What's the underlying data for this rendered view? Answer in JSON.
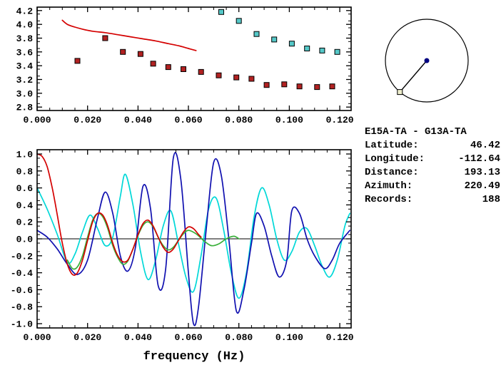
{
  "station_info": {
    "title": "E15A-TA - G13A-TA",
    "rows": [
      {
        "label": "Latitude:",
        "value": "46.42"
      },
      {
        "label": "Longitude:",
        "value": "-112.64"
      },
      {
        "label": "Distance:",
        "value": "193.13"
      },
      {
        "label": "Azimuth:",
        "value": "220.49"
      },
      {
        "label": "Records:",
        "value": "188"
      }
    ]
  },
  "azimuth_plot": {
    "azimuth_deg": 220.49,
    "circle_color": "#000000",
    "center_dot_color": "#000080",
    "endpoint_marker_color": "#eeeecc"
  },
  "chart_data": [
    {
      "type": "scatter",
      "title": "",
      "xlabel": "",
      "ylabel": "",
      "xlim": [
        0,
        0.1245
      ],
      "ylim": [
        2.75,
        4.25
      ],
      "xticks": [
        0,
        0.02,
        0.04,
        0.06,
        0.08,
        0.1,
        0.12
      ],
      "xtick_labels": [
        "0.000",
        "0.020",
        "0.040",
        "0.060",
        "0.080",
        "0.100",
        "0.120"
      ],
      "yticks": [
        2.8,
        3.0,
        3.2,
        3.4,
        3.6,
        3.8,
        4.0,
        4.2
      ],
      "ytick_labels": [
        "2.8",
        "3.0",
        "3.2",
        "3.4",
        "3.6",
        "3.8",
        "4.0",
        "4.2"
      ],
      "x_minor_step": 0.005,
      "y_minor_step": 0.1,
      "zero_line": false,
      "series": [
        {
          "name": "phase-velocity-curve",
          "marker": "line",
          "color": "#d40000",
          "points": [
            [
              0.01,
              4.06
            ],
            [
              0.012,
              4.0
            ],
            [
              0.015,
              3.96
            ],
            [
              0.018,
              3.93
            ],
            [
              0.022,
              3.9
            ],
            [
              0.027,
              3.88
            ],
            [
              0.032,
              3.85
            ],
            [
              0.037,
              3.82
            ],
            [
              0.042,
              3.79
            ],
            [
              0.047,
              3.76
            ],
            [
              0.052,
              3.72
            ],
            [
              0.056,
              3.69
            ],
            [
              0.06,
              3.65
            ],
            [
              0.063,
              3.62
            ]
          ]
        },
        {
          "name": "red-square-points",
          "marker": "square",
          "color": "#b22222",
          "points": [
            [
              0.016,
              3.47
            ],
            [
              0.027,
              3.8
            ],
            [
              0.034,
              3.6
            ],
            [
              0.041,
              3.57
            ],
            [
              0.046,
              3.43
            ],
            [
              0.052,
              3.38
            ],
            [
              0.058,
              3.35
            ],
            [
              0.065,
              3.31
            ],
            [
              0.072,
              3.26
            ],
            [
              0.079,
              3.23
            ],
            [
              0.085,
              3.21
            ],
            [
              0.091,
              3.12
            ],
            [
              0.098,
              3.13
            ],
            [
              0.104,
              3.1
            ],
            [
              0.111,
              3.09
            ],
            [
              0.117,
              3.1
            ]
          ]
        },
        {
          "name": "cyan-square-points",
          "marker": "square",
          "color": "#55c8c8",
          "points": [
            [
              0.073,
              4.18
            ],
            [
              0.08,
              4.05
            ],
            [
              0.087,
              3.86
            ],
            [
              0.094,
              3.78
            ],
            [
              0.101,
              3.72
            ],
            [
              0.107,
              3.65
            ],
            [
              0.113,
              3.62
            ],
            [
              0.119,
              3.6
            ]
          ]
        }
      ]
    },
    {
      "type": "line",
      "title": "",
      "xlabel": "frequency (Hz)",
      "ylabel": "",
      "xlim": [
        0,
        0.1245
      ],
      "ylim": [
        -1.05,
        1.05
      ],
      "xticks": [
        0,
        0.02,
        0.04,
        0.06,
        0.08,
        0.1,
        0.12
      ],
      "xtick_labels": [
        "0.000",
        "0.020",
        "0.040",
        "0.060",
        "0.080",
        "0.100",
        "0.120"
      ],
      "yticks": [
        -1.0,
        -0.8,
        -0.6,
        -0.4,
        -0.2,
        0.0,
        0.2,
        0.4,
        0.6,
        0.8,
        1.0
      ],
      "ytick_labels": [
        "-1.0",
        "-0.8",
        "-0.6",
        "-0.4",
        "-0.2",
        "0.0",
        "0.2",
        "0.4",
        "0.6",
        "0.8",
        "1.0"
      ],
      "x_minor_step": 0.005,
      "y_minor_step": 0.1,
      "zero_line": true,
      "series": [
        {
          "name": "cyan-waveform",
          "marker": "line",
          "color": "#00d8d8",
          "points": [
            [
              0.0,
              0.6
            ],
            [
              0.004,
              0.35
            ],
            [
              0.008,
              0.05
            ],
            [
              0.012,
              -0.28
            ],
            [
              0.015,
              -0.18
            ],
            [
              0.018,
              0.08
            ],
            [
              0.021,
              0.28
            ],
            [
              0.024,
              0.12
            ],
            [
              0.027,
              -0.08
            ],
            [
              0.03,
              0.02
            ],
            [
              0.033,
              0.5
            ],
            [
              0.035,
              0.76
            ],
            [
              0.038,
              0.4
            ],
            [
              0.041,
              -0.15
            ],
            [
              0.044,
              -0.48
            ],
            [
              0.047,
              -0.25
            ],
            [
              0.05,
              0.15
            ],
            [
              0.053,
              0.33
            ],
            [
              0.056,
              -0.05
            ],
            [
              0.059,
              -0.45
            ],
            [
              0.062,
              -0.62
            ],
            [
              0.065,
              -0.2
            ],
            [
              0.068,
              0.35
            ],
            [
              0.071,
              0.48
            ],
            [
              0.074,
              0.1
            ],
            [
              0.077,
              -0.4
            ],
            [
              0.08,
              -0.7
            ],
            [
              0.083,
              -0.4
            ],
            [
              0.086,
              0.25
            ],
            [
              0.089,
              0.6
            ],
            [
              0.092,
              0.4
            ],
            [
              0.095,
              0.0
            ],
            [
              0.098,
              -0.25
            ],
            [
              0.101,
              -0.15
            ],
            [
              0.104,
              0.08
            ],
            [
              0.107,
              0.12
            ],
            [
              0.11,
              -0.08
            ],
            [
              0.113,
              -0.32
            ],
            [
              0.116,
              -0.45
            ],
            [
              0.119,
              -0.25
            ],
            [
              0.122,
              0.15
            ],
            [
              0.124,
              0.3
            ]
          ]
        },
        {
          "name": "blue-waveform",
          "marker": "line",
          "color": "#1010b0",
          "points": [
            [
              0.0,
              0.1
            ],
            [
              0.004,
              0.02
            ],
            [
              0.008,
              -0.12
            ],
            [
              0.012,
              -0.3
            ],
            [
              0.016,
              -0.42
            ],
            [
              0.02,
              -0.25
            ],
            [
              0.024,
              0.25
            ],
            [
              0.027,
              0.55
            ],
            [
              0.03,
              0.3
            ],
            [
              0.033,
              -0.2
            ],
            [
              0.036,
              -0.38
            ],
            [
              0.039,
              -0.1
            ],
            [
              0.042,
              0.62
            ],
            [
              0.045,
              0.35
            ],
            [
              0.048,
              -0.55
            ],
            [
              0.051,
              -0.35
            ],
            [
              0.054,
              0.95
            ],
            [
              0.057,
              0.7
            ],
            [
              0.06,
              -0.4
            ],
            [
              0.062,
              -1.0
            ],
            [
              0.064,
              -0.8
            ],
            [
              0.067,
              0.1
            ],
            [
              0.07,
              0.9
            ],
            [
              0.073,
              0.75
            ],
            [
              0.076,
              0.0
            ],
            [
              0.079,
              -0.85
            ],
            [
              0.082,
              -0.6
            ],
            [
              0.085,
              -0.05
            ],
            [
              0.087,
              0.3
            ],
            [
              0.09,
              0.15
            ],
            [
              0.093,
              -0.2
            ],
            [
              0.096,
              -0.45
            ],
            [
              0.099,
              -0.25
            ],
            [
              0.101,
              0.33
            ],
            [
              0.104,
              0.3
            ],
            [
              0.107,
              0.0
            ],
            [
              0.11,
              -0.2
            ],
            [
              0.114,
              -0.35
            ],
            [
              0.117,
              -0.25
            ],
            [
              0.12,
              -0.05
            ],
            [
              0.124,
              0.1
            ]
          ]
        },
        {
          "name": "green-waveform",
          "marker": "line",
          "color": "#3ab03a",
          "points": [
            [
              0.012,
              -0.25
            ],
            [
              0.014,
              -0.35
            ],
            [
              0.016,
              -0.33
            ],
            [
              0.018,
              -0.2
            ],
            [
              0.02,
              0.02
            ],
            [
              0.022,
              0.22
            ],
            [
              0.024,
              0.3
            ],
            [
              0.026,
              0.26
            ],
            [
              0.028,
              0.12
            ],
            [
              0.03,
              -0.08
            ],
            [
              0.032,
              -0.22
            ],
            [
              0.034,
              -0.3
            ],
            [
              0.036,
              -0.26
            ],
            [
              0.038,
              -0.12
            ],
            [
              0.04,
              0.04
            ],
            [
              0.042,
              0.16
            ],
            [
              0.044,
              0.2
            ],
            [
              0.046,
              0.14
            ],
            [
              0.048,
              0.02
            ],
            [
              0.05,
              -0.08
            ],
            [
              0.052,
              -0.13
            ],
            [
              0.054,
              -0.1
            ],
            [
              0.056,
              -0.02
            ],
            [
              0.058,
              0.06
            ],
            [
              0.06,
              0.1
            ],
            [
              0.063,
              0.06
            ],
            [
              0.066,
              -0.02
            ],
            [
              0.069,
              -0.08
            ],
            [
              0.072,
              -0.06
            ],
            [
              0.075,
              0.0
            ],
            [
              0.078,
              0.03
            ],
            [
              0.08,
              0.0
            ]
          ]
        },
        {
          "name": "red-waveform",
          "marker": "line",
          "color": "#d40000",
          "points": [
            [
              0.0,
              1.0
            ],
            [
              0.002,
              0.97
            ],
            [
              0.004,
              0.85
            ],
            [
              0.006,
              0.6
            ],
            [
              0.008,
              0.28
            ],
            [
              0.01,
              -0.05
            ],
            [
              0.012,
              -0.3
            ],
            [
              0.014,
              -0.42
            ],
            [
              0.016,
              -0.4
            ],
            [
              0.018,
              -0.25
            ],
            [
              0.02,
              -0.02
            ],
            [
              0.022,
              0.2
            ],
            [
              0.024,
              0.3
            ],
            [
              0.026,
              0.28
            ],
            [
              0.028,
              0.15
            ],
            [
              0.03,
              -0.05
            ],
            [
              0.032,
              -0.2
            ],
            [
              0.034,
              -0.27
            ],
            [
              0.036,
              -0.25
            ],
            [
              0.038,
              -0.12
            ],
            [
              0.04,
              0.05
            ],
            [
              0.042,
              0.18
            ],
            [
              0.044,
              0.22
            ],
            [
              0.046,
              0.15
            ],
            [
              0.048,
              0.02
            ],
            [
              0.05,
              -0.1
            ],
            [
              0.052,
              -0.16
            ],
            [
              0.054,
              -0.12
            ],
            [
              0.056,
              -0.02
            ],
            [
              0.058,
              0.08
            ],
            [
              0.06,
              0.14
            ],
            [
              0.062,
              0.12
            ],
            [
              0.064,
              0.05
            ],
            [
              0.065,
              0.02
            ]
          ]
        }
      ]
    }
  ]
}
